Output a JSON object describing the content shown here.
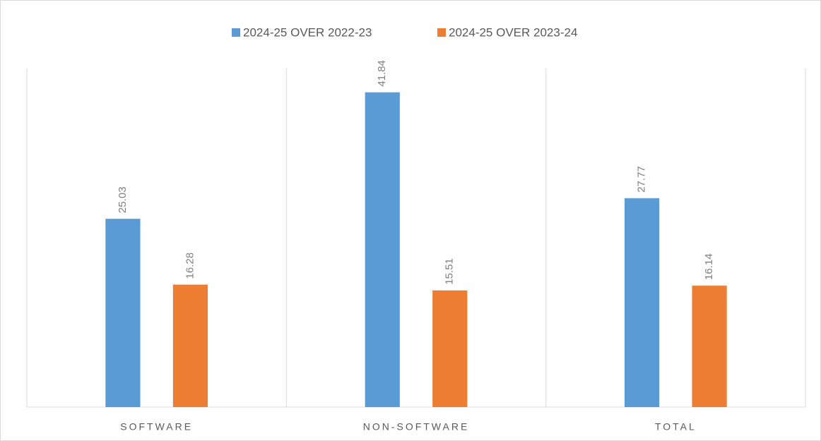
{
  "chart_data": {
    "type": "bar",
    "categories": [
      "SOFTWARE",
      "NON-SOFTWARE",
      "TOTAL"
    ],
    "series": [
      {
        "name": "2024-25 OVER 2022-23",
        "color": "#5b9bd5",
        "values": [
          25.03,
          41.84,
          27.77
        ]
      },
      {
        "name": "2024-25 OVER 2023-24",
        "color": "#ed7d31",
        "values": [
          16.28,
          15.51,
          16.14
        ]
      }
    ],
    "ylim": [
      0,
      45
    ],
    "legend": "top"
  }
}
